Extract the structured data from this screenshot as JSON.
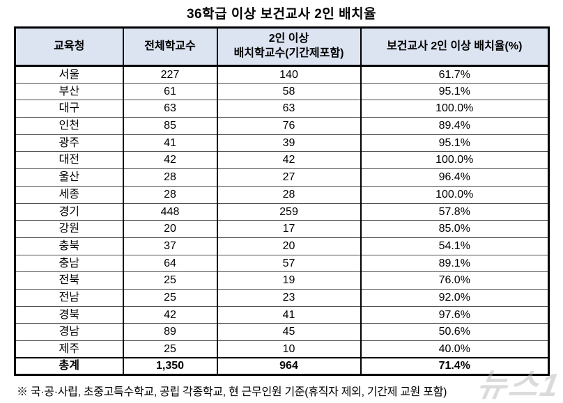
{
  "title": "36학급 이상 보건교사 2인 배치율",
  "headers": [
    {
      "line1": "교육청",
      "line2": ""
    },
    {
      "line1": "전체학교수",
      "line2": ""
    },
    {
      "line1": "2인 이상",
      "line2": "배치학교수(기간제포함)"
    },
    {
      "line1": "보건교사 2인 이상 배치율(%)",
      "line2": ""
    }
  ],
  "chart_data": {
    "type": "table",
    "title": "36학급 이상 보건교사 2인 배치율",
    "columns": [
      "교육청",
      "전체학교수",
      "2인 이상 배치학교수(기간제포함)",
      "보건교사 2인 이상 배치율(%)"
    ],
    "rows": [
      [
        "서울",
        227,
        140,
        "61.7%"
      ],
      [
        "부산",
        61,
        58,
        "95.1%"
      ],
      [
        "대구",
        63,
        63,
        "100.0%"
      ],
      [
        "인천",
        85,
        76,
        "89.4%"
      ],
      [
        "광주",
        41,
        39,
        "95.1%"
      ],
      [
        "대전",
        42,
        42,
        "100.0%"
      ],
      [
        "울산",
        28,
        27,
        "96.4%"
      ],
      [
        "세종",
        28,
        28,
        "100.0%"
      ],
      [
        "경기",
        448,
        259,
        "57.8%"
      ],
      [
        "강원",
        20,
        17,
        "85.0%"
      ],
      [
        "충북",
        37,
        20,
        "54.1%"
      ],
      [
        "충남",
        64,
        57,
        "89.1%"
      ],
      [
        "전북",
        25,
        19,
        "76.0%"
      ],
      [
        "전남",
        25,
        23,
        "92.0%"
      ],
      [
        "경북",
        42,
        41,
        "97.6%"
      ],
      [
        "경남",
        89,
        45,
        "50.6%"
      ],
      [
        "제주",
        25,
        10,
        "40.0%"
      ]
    ],
    "total_row": [
      "총계",
      "1,350",
      "964",
      "71.4%"
    ],
    "layout": {
      "header_bg": "#dce3f1",
      "grid_color": "#000000",
      "values_align": "center"
    }
  },
  "footnote": "※ 국·공·사립, 초중고특수학교, 공립 각종학교, 현 근무인원 기준(휴직자 제외, 기간제 교원 포함)",
  "watermark": "뉴스1"
}
